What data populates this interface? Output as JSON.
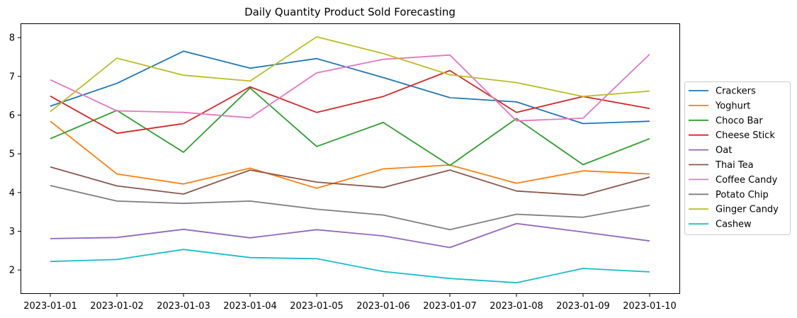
{
  "chart_data": {
    "type": "line",
    "title": "Daily Quantity Product Sold Forecasting",
    "xlabel": "",
    "ylabel": "",
    "x": [
      "2023-01-01",
      "2023-01-02",
      "2023-01-03",
      "2023-01-04",
      "2023-01-05",
      "2023-01-06",
      "2023-01-07",
      "2023-01-08",
      "2023-01-09",
      "2023-01-10"
    ],
    "ylim": [
      1.4,
      8.35
    ],
    "yticks": [
      2,
      3,
      4,
      5,
      6,
      7,
      8
    ],
    "grid": false,
    "legend_position": "right",
    "series": [
      {
        "name": "Crackers",
        "color": "#1f77b4",
        "values": [
          6.23,
          6.82,
          7.65,
          7.21,
          7.46,
          6.97,
          6.45,
          6.34,
          5.78,
          5.84
        ]
      },
      {
        "name": "Yoghurt",
        "color": "#ff7f0e",
        "values": [
          5.84,
          4.48,
          4.22,
          4.63,
          4.11,
          4.61,
          4.71,
          4.24,
          4.56,
          4.48
        ]
      },
      {
        "name": "Choco Bar",
        "color": "#2ca02c",
        "values": [
          5.39,
          6.12,
          5.04,
          6.7,
          5.19,
          5.81,
          4.7,
          5.91,
          4.72,
          5.39
        ]
      },
      {
        "name": "Cheese Stick",
        "color": "#d62728",
        "values": [
          6.49,
          5.53,
          5.78,
          6.73,
          6.07,
          6.48,
          7.15,
          6.07,
          6.48,
          6.17
        ]
      },
      {
        "name": "Oat",
        "color": "#9467bd",
        "values": [
          2.81,
          2.84,
          3.05,
          2.83,
          3.04,
          2.88,
          2.58,
          3.2,
          2.98,
          2.75
        ]
      },
      {
        "name": "Thai Tea",
        "color": "#8c564b",
        "values": [
          4.66,
          4.17,
          3.96,
          4.58,
          4.27,
          4.13,
          4.58,
          4.04,
          3.93,
          4.4
        ]
      },
      {
        "name": "Coffee Candy",
        "color": "#e377c2",
        "values": [
          6.91,
          6.11,
          6.07,
          5.93,
          7.09,
          7.44,
          7.55,
          5.85,
          5.92,
          7.57
        ]
      },
      {
        "name": "Potato Chip",
        "color": "#7f7f7f",
        "values": [
          4.18,
          3.78,
          3.72,
          3.78,
          3.57,
          3.42,
          3.04,
          3.44,
          3.36,
          3.67
        ]
      },
      {
        "name": "Ginger Candy",
        "color": "#bcbd22",
        "values": [
          6.09,
          7.47,
          7.03,
          6.88,
          8.02,
          7.59,
          7.04,
          6.84,
          6.48,
          6.62
        ]
      },
      {
        "name": "Cashew",
        "color": "#17becf",
        "values": [
          2.22,
          2.27,
          2.53,
          2.32,
          2.29,
          1.96,
          1.78,
          1.67,
          2.04,
          1.95
        ]
      }
    ]
  }
}
